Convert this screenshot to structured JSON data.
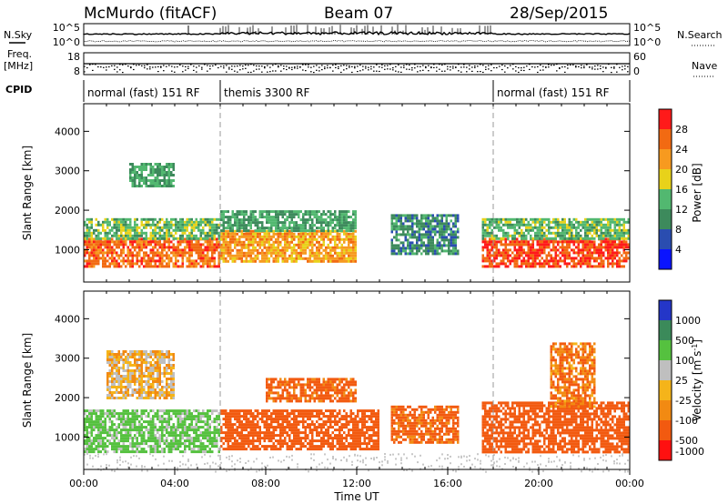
{
  "header": {
    "station": "McMurdo (fitACF)",
    "beam": "Beam 07",
    "date": "28/Sep/2015"
  },
  "side_labels": {
    "n_sky": "N.Sky",
    "n_search": "N.Search",
    "freq_line1": "Freq.",
    "freq_line2": "[MHz]",
    "nave": "Nave",
    "cpid": "CPID"
  },
  "noise_panel": {
    "left_ticks": [
      "10^5",
      "10^0"
    ],
    "right_ticks": [
      "10^5",
      "10^0"
    ]
  },
  "freq_panel": {
    "left_ticks": [
      "18",
      "8"
    ],
    "right_ticks": [
      "60",
      "0"
    ]
  },
  "cpid_segments": [
    {
      "label": "normal (fast) 151 RF",
      "start_h": 0,
      "end_h": 6
    },
    {
      "label": "themis 3300 RF",
      "start_h": 6,
      "end_h": 18
    },
    {
      "label": "normal (fast) 151 RF",
      "start_h": 18,
      "end_h": 24
    }
  ],
  "x_axis": {
    "label": "Time UT",
    "ticks": [
      "00:00",
      "04:00",
      "08:00",
      "12:00",
      "16:00",
      "20:00",
      "00:00"
    ],
    "tick_hours": [
      0,
      4,
      8,
      12,
      16,
      20,
      24
    ],
    "range_h": [
      0,
      24
    ]
  },
  "y_axis": {
    "label": "Slant Range [km]",
    "ticks": [
      "1000",
      "2000",
      "3000",
      "4000"
    ],
    "tick_values": [
      1000,
      2000,
      3000,
      4000
    ],
    "range_km": [
      180,
      4700
    ]
  },
  "power_colorbar": {
    "label": "Power [dB]",
    "ticks": [
      "4",
      "8",
      "12",
      "16",
      "20",
      "24",
      "28"
    ],
    "colors": [
      "#0a14ff",
      "#2a4db0",
      "#3d8a5c",
      "#52b870",
      "#e8d21a",
      "#f79a1f",
      "#f26a12",
      "#ff1a1a"
    ]
  },
  "velocity_colorbar": {
    "label": "Velocity [m s-1]",
    "ticks": [
      "1000",
      "500",
      "100",
      "25",
      "-25",
      "-100",
      "-500",
      "-1000"
    ],
    "colors": [
      "#2436c8",
      "#3b8a5a",
      "#55c13f",
      "#bfbfbf",
      "#f5b41a",
      "#f28a12",
      "#f25a10",
      "#ff1010"
    ]
  },
  "chart_data": [
    {
      "type": "heatmap",
      "title": "Power",
      "xlabel": "Time UT",
      "ylabel": "Slant Range [km]",
      "xlim": [
        0,
        24
      ],
      "ylim": [
        180,
        4700
      ],
      "bands": [
        {
          "t0": 0.0,
          "t1": 6.0,
          "r0": 600,
          "r1": 1300,
          "value_db": 26
        },
        {
          "t0": 0.0,
          "t1": 6.0,
          "r0": 1300,
          "r1": 1800,
          "value_db": 14
        },
        {
          "t0": 2.0,
          "t1": 4.0,
          "r0": 2600,
          "r1": 3200,
          "value_db": 12
        },
        {
          "t0": 6.0,
          "t1": 12.0,
          "r0": 700,
          "r1": 1500,
          "value_db": 22
        },
        {
          "t0": 6.0,
          "t1": 12.0,
          "r0": 1500,
          "r1": 2000,
          "value_db": 12
        },
        {
          "t0": 13.5,
          "t1": 16.5,
          "r0": 900,
          "r1": 1900,
          "value_db": 10
        },
        {
          "t0": 17.5,
          "t1": 24.0,
          "r0": 600,
          "r1": 1300,
          "value_db": 28
        },
        {
          "t0": 17.5,
          "t1": 24.0,
          "r0": 1300,
          "r1": 1800,
          "value_db": 14
        }
      ]
    },
    {
      "type": "heatmap",
      "title": "Velocity",
      "xlabel": "Time UT",
      "ylabel": "Slant Range [km]",
      "xlim": [
        0,
        24
      ],
      "ylim": [
        180,
        4700
      ],
      "bands": [
        {
          "t0": 0.0,
          "t1": 6.0,
          "r0": 600,
          "r1": 1700,
          "value_ms": 150
        },
        {
          "t0": 1.0,
          "t1": 4.0,
          "r0": 2000,
          "r1": 3200,
          "value_ms": 0
        },
        {
          "t0": 6.0,
          "t1": 13.0,
          "r0": 700,
          "r1": 1700,
          "value_ms": -200
        },
        {
          "t0": 8.0,
          "t1": 12.0,
          "r0": 1900,
          "r1": 2500,
          "value_ms": -150
        },
        {
          "t0": 13.5,
          "t1": 16.5,
          "r0": 900,
          "r1": 1800,
          "value_ms": -150
        },
        {
          "t0": 17.5,
          "t1": 24.0,
          "r0": 600,
          "r1": 1900,
          "value_ms": -300
        },
        {
          "t0": 20.5,
          "t1": 22.5,
          "r0": 1800,
          "r1": 3400,
          "value_ms": -100
        }
      ]
    }
  ]
}
